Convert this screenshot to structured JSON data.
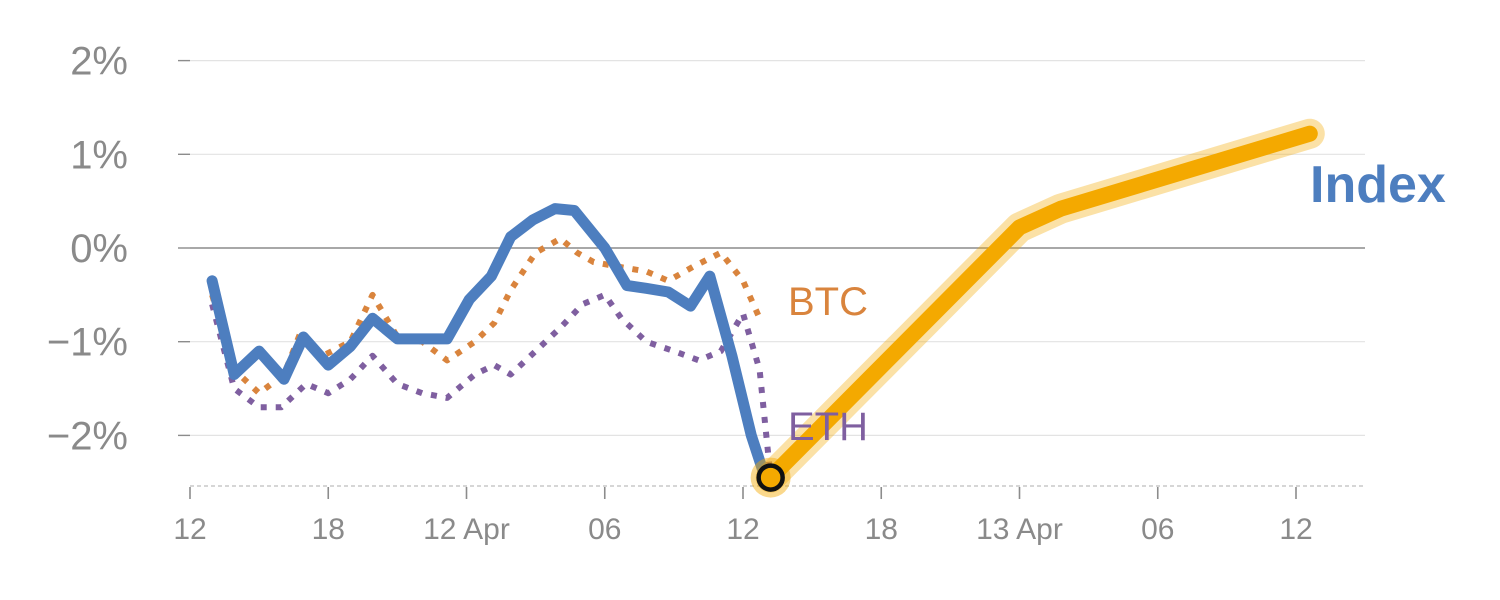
{
  "chart_data": {
    "type": "line",
    "title": "",
    "xlabel": "",
    "ylabel": "",
    "ylim": [
      -2.5,
      2.0
    ],
    "y_ticks": [
      {
        "value": 2,
        "label": "2%"
      },
      {
        "value": 1,
        "label": "1%"
      },
      {
        "value": 0,
        "label": "0%"
      },
      {
        "value": -1,
        "label": "−1%"
      },
      {
        "value": -2,
        "label": "−2%"
      }
    ],
    "x_range": [
      0,
      43
    ],
    "x_ticks": [
      {
        "value": 0,
        "label": "12"
      },
      {
        "value": 5,
        "label": "18"
      },
      {
        "value": 10,
        "label": "12 Apr"
      },
      {
        "value": 15,
        "label": "06"
      },
      {
        "value": 20,
        "label": "12"
      },
      {
        "value": 25,
        "label": "18"
      },
      {
        "value": 30,
        "label": "13 Apr"
      },
      {
        "value": 35,
        "label": "06"
      },
      {
        "value": 40,
        "label": "12"
      }
    ],
    "grid": true,
    "zero_line": true,
    "series": [
      {
        "name": "BTC",
        "color": "#d9843d",
        "style": "dotted",
        "x": [
          0.8,
          1.6,
          2.5,
          3.4,
          4.0,
          4.8,
          5.8,
          6.6,
          7.5,
          8.4,
          9.3,
          10.3,
          11.0,
          11.6,
          12.5,
          13.4,
          14.0,
          14.6,
          15.5,
          16.5,
          17.3,
          18.2,
          19.2,
          20.0,
          20.6
        ],
        "y": [
          -0.5,
          -1.3,
          -1.55,
          -1.35,
          -0.9,
          -1.15,
          -1.0,
          -0.5,
          -0.95,
          -1.0,
          -1.2,
          -1.0,
          -0.8,
          -0.45,
          -0.05,
          0.1,
          -0.05,
          -0.15,
          -0.2,
          -0.25,
          -0.35,
          -0.2,
          -0.05,
          -0.35,
          -0.75
        ]
      },
      {
        "name": "ETH",
        "color": "#7f5fa0",
        "style": "dotted",
        "x": [
          0.8,
          1.6,
          2.5,
          3.3,
          4.2,
          5.0,
          5.8,
          6.6,
          7.5,
          8.4,
          9.3,
          10.3,
          11.0,
          11.6,
          12.5,
          13.4,
          14.2,
          15.0,
          15.6,
          16.5,
          17.5,
          18.4,
          19.2,
          20.0,
          20.6,
          21.0
        ],
        "y": [
          -0.6,
          -1.5,
          -1.7,
          -1.7,
          -1.45,
          -1.55,
          -1.4,
          -1.15,
          -1.45,
          -1.55,
          -1.6,
          -1.35,
          -1.25,
          -1.35,
          -1.1,
          -0.85,
          -0.6,
          -0.5,
          -0.75,
          -1.0,
          -1.1,
          -1.2,
          -1.1,
          -0.7,
          -1.3,
          -2.45
        ]
      },
      {
        "name": "Index",
        "color": "#4d7ebf",
        "style": "solid",
        "x": [
          0.8,
          1.6,
          2.5,
          3.4,
          4.1,
          5.0,
          5.8,
          6.6,
          7.5,
          8.4,
          9.3,
          10.1,
          10.9,
          11.6,
          12.4,
          13.2,
          13.9,
          15.0,
          15.8,
          16.5,
          17.3,
          18.1,
          18.8,
          19.6,
          20.3,
          20.8
        ],
        "y": [
          -0.35,
          -1.35,
          -1.1,
          -1.4,
          -0.95,
          -1.25,
          -1.05,
          -0.75,
          -0.97,
          -0.97,
          -0.97,
          -0.55,
          -0.3,
          0.12,
          0.3,
          0.42,
          0.4,
          0.0,
          -0.4,
          -0.43,
          -0.47,
          -0.62,
          -0.3,
          -1.15,
          -2.0,
          -2.45
        ]
      },
      {
        "name": "Index forecast",
        "color": "#f4a900",
        "style": "band",
        "x": [
          21.0,
          30.0,
          31.5,
          40.5
        ],
        "y": [
          -2.45,
          0.22,
          0.42,
          1.22
        ]
      }
    ],
    "marker": {
      "x": 21.0,
      "y": -2.45,
      "fill": "#f4a900",
      "ring": "#111111"
    },
    "labels": {
      "btc": "BTC",
      "eth": "ETH",
      "index": "Index"
    }
  }
}
